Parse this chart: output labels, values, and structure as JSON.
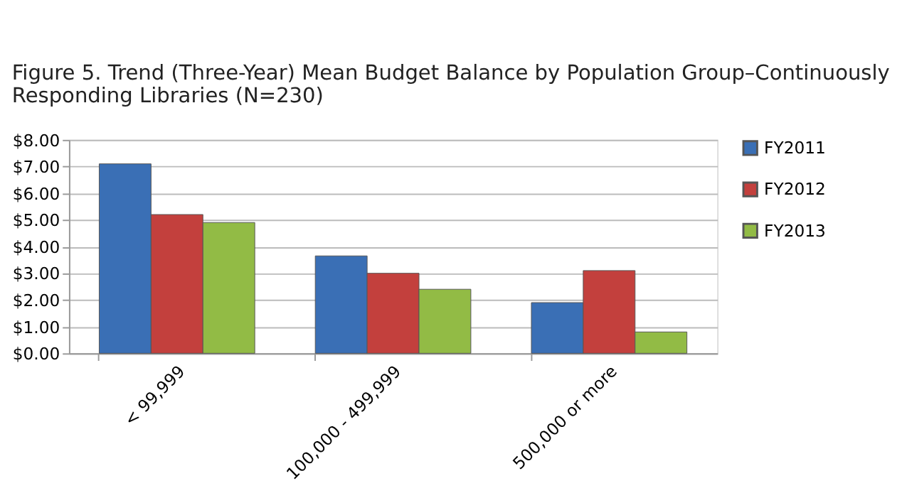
{
  "chart_data": {
    "type": "bar",
    "title": "Figure 5. Trend (Three-Year) Mean Budget Balance by Population Group–Continuously Responding Libraries (N=230)",
    "categories": [
      "< 99,999",
      "100,000 - 499,999",
      "500,000 or more"
    ],
    "series": [
      {
        "name": "FY2011",
        "color": "#3a6fb5",
        "values": [
          7.1,
          3.65,
          1.9
        ]
      },
      {
        "name": "FY2012",
        "color": "#c3403d",
        "values": [
          5.2,
          3.0,
          3.1
        ]
      },
      {
        "name": "FY2013",
        "color": "#92bb45",
        "values": [
          4.9,
          2.4,
          0.8
        ]
      }
    ],
    "ylim": [
      0,
      8
    ],
    "yticks": [
      {
        "value": 0,
        "label": "$0.00"
      },
      {
        "value": 1,
        "label": "$1.00"
      },
      {
        "value": 2,
        "label": "$2.00"
      },
      {
        "value": 3,
        "label": "$3.00"
      },
      {
        "value": 4,
        "label": "$4.00"
      },
      {
        "value": 5,
        "label": "$5.00"
      },
      {
        "value": 6,
        "label": "$6.00"
      },
      {
        "value": 7,
        "label": "$7.00"
      },
      {
        "value": 8,
        "label": "$8.00"
      }
    ],
    "grid": "y",
    "legend": "right"
  }
}
